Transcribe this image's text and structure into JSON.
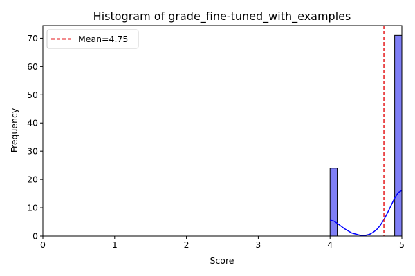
{
  "chart_data": {
    "type": "bar",
    "title": "Histogram of grade_fine-tuned_with_examples",
    "xlabel": "Score",
    "ylabel": "Frequency",
    "xlim": [
      0,
      5
    ],
    "ylim": [
      0,
      74.5
    ],
    "xticks": [
      0,
      1,
      2,
      3,
      4,
      5
    ],
    "yticks": [
      0,
      10,
      20,
      30,
      40,
      50,
      60,
      70
    ],
    "bins": [
      {
        "x0": 4.0,
        "x1": 4.1,
        "count": 24
      },
      {
        "x0": 4.9,
        "x1": 5.0,
        "count": 71
      }
    ],
    "kde": {
      "x": [
        4.0,
        4.05,
        4.1,
        4.2,
        4.3,
        4.4,
        4.45,
        4.5,
        4.55,
        4.6,
        4.65,
        4.7,
        4.75,
        4.8,
        4.85,
        4.9,
        4.95,
        5.0
      ],
      "y": [
        5.6,
        5.3,
        4.5,
        2.6,
        1.1,
        0.4,
        0.2,
        0.3,
        0.6,
        1.3,
        2.3,
        3.8,
        5.8,
        8.2,
        10.8,
        13.4,
        15.4,
        16.1
      ]
    },
    "mean": 4.75,
    "legend": [
      "Mean=4.75"
    ],
    "legend_position": "top-left",
    "grid": false,
    "colors": {
      "bar_fill": "#7f7ff6",
      "bar_edge": "#000000",
      "kde_line": "#0000ff",
      "mean_line": "#e41a1c"
    }
  }
}
